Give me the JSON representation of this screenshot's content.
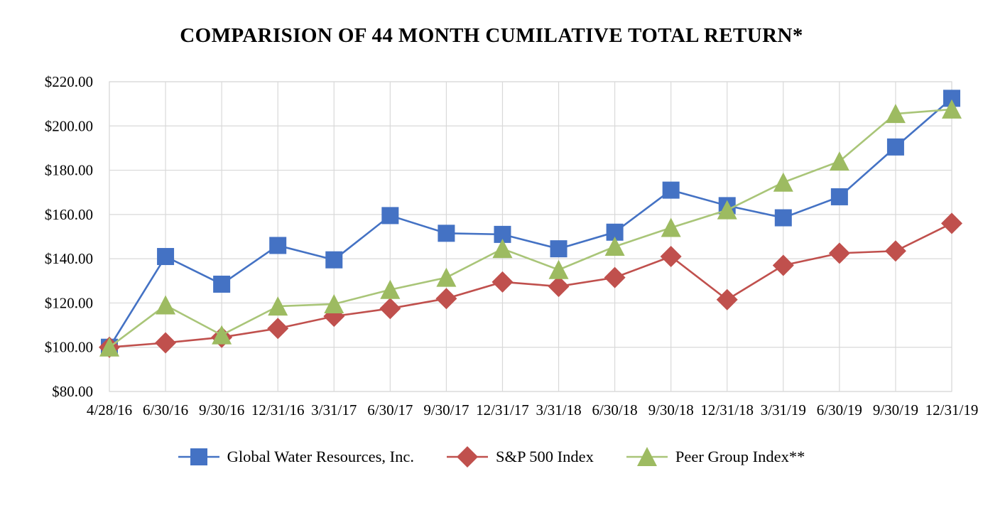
{
  "chart_data": {
    "type": "line",
    "title": "COMPARISION OF 44 MONTH CUMILATIVE TOTAL RETURN*",
    "categories": [
      "4/28/16",
      "6/30/16",
      "9/30/16",
      "12/31/16",
      "3/31/17",
      "6/30/17",
      "9/30/17",
      "12/31/17",
      "3/31/18",
      "6/30/18",
      "9/30/18",
      "12/31/18",
      "3/31/19",
      "6/30/19",
      "9/30/19",
      "12/31/19"
    ],
    "series": [
      {
        "name": "Global Water Resources, Inc.",
        "marker": "square",
        "color": "#4472C4",
        "line_color": "#4472C4",
        "values": [
          100,
          141,
          128.5,
          146,
          139.5,
          159.5,
          151.5,
          151,
          144.5,
          152,
          171,
          164,
          158.5,
          168,
          190.5,
          212.5
        ]
      },
      {
        "name": "S&P 500 Index",
        "marker": "diamond",
        "color": "#C0504D",
        "line_color": "#C0504D",
        "values": [
          100,
          102,
          104.5,
          108.5,
          114,
          117.5,
          122,
          129.5,
          127.5,
          131.5,
          141,
          121.5,
          137,
          142.5,
          143.5,
          156
        ]
      },
      {
        "name": "Peer Group Index**",
        "marker": "triangle",
        "color": "#9DBB61",
        "line_color": "#A9C578",
        "values": [
          100,
          119,
          105.5,
          118.5,
          119.5,
          126,
          131.5,
          144.5,
          135,
          145.5,
          154,
          162,
          174.5,
          184,
          205.5,
          207.5
        ]
      }
    ],
    "xlabel": "",
    "ylabel": "",
    "ylim": [
      80,
      220
    ],
    "y_tick_labels": [
      "$80.00",
      "$100.00",
      "$120.00",
      "$140.00",
      "$160.00",
      "$180.00",
      "$200.00",
      "$220.00"
    ],
    "grid": true,
    "gridline_color": "#D9D9D9",
    "legend_position": "bottom"
  }
}
